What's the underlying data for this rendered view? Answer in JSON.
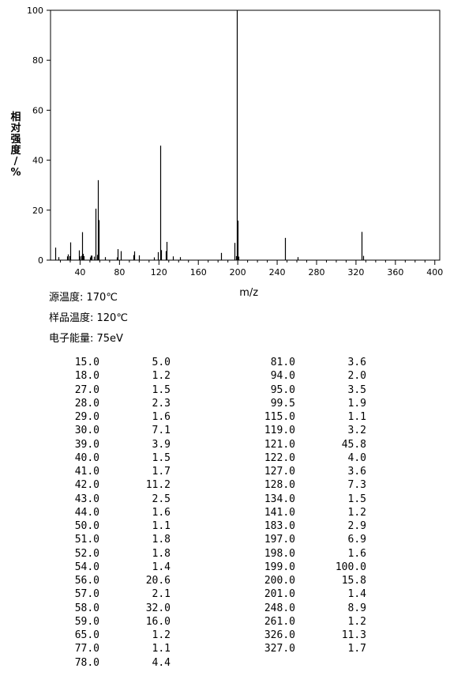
{
  "chart_data": {
    "type": "bar",
    "ylabel": "相对强度/%",
    "xlabel": "m/z",
    "xlim": [
      10,
      405
    ],
    "ylim": [
      0,
      100
    ],
    "xticks": [
      40,
      80,
      120,
      160,
      200,
      240,
      280,
      320,
      360,
      400
    ],
    "yticks": [
      0,
      20,
      40,
      60,
      80,
      100
    ],
    "bar_color": "#000000",
    "peaks": [
      {
        "mz": 15.0,
        "intensity": 5.0
      },
      {
        "mz": 18.0,
        "intensity": 1.2
      },
      {
        "mz": 27.0,
        "intensity": 1.5
      },
      {
        "mz": 28.0,
        "intensity": 2.3
      },
      {
        "mz": 29.0,
        "intensity": 1.6
      },
      {
        "mz": 30.0,
        "intensity": 7.1
      },
      {
        "mz": 39.0,
        "intensity": 3.9
      },
      {
        "mz": 40.0,
        "intensity": 1.5
      },
      {
        "mz": 41.0,
        "intensity": 1.7
      },
      {
        "mz": 42.0,
        "intensity": 11.2
      },
      {
        "mz": 43.0,
        "intensity": 2.5
      },
      {
        "mz": 44.0,
        "intensity": 1.6
      },
      {
        "mz": 50.0,
        "intensity": 1.1
      },
      {
        "mz": 51.0,
        "intensity": 1.8
      },
      {
        "mz": 52.0,
        "intensity": 1.8
      },
      {
        "mz": 54.0,
        "intensity": 1.4
      },
      {
        "mz": 56.0,
        "intensity": 20.6
      },
      {
        "mz": 57.0,
        "intensity": 2.1
      },
      {
        "mz": 58.0,
        "intensity": 32.0
      },
      {
        "mz": 59.0,
        "intensity": 16.0
      },
      {
        "mz": 65.0,
        "intensity": 1.2
      },
      {
        "mz": 77.0,
        "intensity": 1.1
      },
      {
        "mz": 78.0,
        "intensity": 4.4
      },
      {
        "mz": 81.0,
        "intensity": 3.6
      },
      {
        "mz": 94.0,
        "intensity": 2.0
      },
      {
        "mz": 95.0,
        "intensity": 3.5
      },
      {
        "mz": 99.5,
        "intensity": 1.9
      },
      {
        "mz": 115.0,
        "intensity": 1.1
      },
      {
        "mz": 119.0,
        "intensity": 3.2
      },
      {
        "mz": 121.0,
        "intensity": 45.8
      },
      {
        "mz": 122.0,
        "intensity": 4.0
      },
      {
        "mz": 127.0,
        "intensity": 3.6
      },
      {
        "mz": 128.0,
        "intensity": 7.3
      },
      {
        "mz": 134.0,
        "intensity": 1.5
      },
      {
        "mz": 141.0,
        "intensity": 1.2
      },
      {
        "mz": 183.0,
        "intensity": 2.9
      },
      {
        "mz": 197.0,
        "intensity": 6.9
      },
      {
        "mz": 198.0,
        "intensity": 1.6
      },
      {
        "mz": 199.0,
        "intensity": 100.0
      },
      {
        "mz": 200.0,
        "intensity": 15.8
      },
      {
        "mz": 201.0,
        "intensity": 1.4
      },
      {
        "mz": 248.0,
        "intensity": 8.9
      },
      {
        "mz": 261.0,
        "intensity": 1.2
      },
      {
        "mz": 326.0,
        "intensity": 11.3
      },
      {
        "mz": 327.0,
        "intensity": 1.7
      }
    ]
  },
  "conditions": {
    "source_temp": "源温度: 170℃",
    "sample_temp": "样品温度: 120℃",
    "electron_energy": "电子能量: 75eV"
  },
  "table": {
    "left": [
      {
        "mz": "15.0",
        "intensity": "5.0"
      },
      {
        "mz": "18.0",
        "intensity": "1.2"
      },
      {
        "mz": "27.0",
        "intensity": "1.5"
      },
      {
        "mz": "28.0",
        "intensity": "2.3"
      },
      {
        "mz": "29.0",
        "intensity": "1.6"
      },
      {
        "mz": "30.0",
        "intensity": "7.1"
      },
      {
        "mz": "39.0",
        "intensity": "3.9"
      },
      {
        "mz": "40.0",
        "intensity": "1.5"
      },
      {
        "mz": "41.0",
        "intensity": "1.7"
      },
      {
        "mz": "42.0",
        "intensity": "11.2"
      },
      {
        "mz": "43.0",
        "intensity": "2.5"
      },
      {
        "mz": "44.0",
        "intensity": "1.6"
      },
      {
        "mz": "50.0",
        "intensity": "1.1"
      },
      {
        "mz": "51.0",
        "intensity": "1.8"
      },
      {
        "mz": "52.0",
        "intensity": "1.8"
      },
      {
        "mz": "54.0",
        "intensity": "1.4"
      },
      {
        "mz": "56.0",
        "intensity": "20.6"
      },
      {
        "mz": "57.0",
        "intensity": "2.1"
      },
      {
        "mz": "58.0",
        "intensity": "32.0"
      },
      {
        "mz": "59.0",
        "intensity": "16.0"
      },
      {
        "mz": "65.0",
        "intensity": "1.2"
      },
      {
        "mz": "77.0",
        "intensity": "1.1"
      },
      {
        "mz": "78.0",
        "intensity": "4.4"
      }
    ],
    "right": [
      {
        "mz": "81.0",
        "intensity": "3.6"
      },
      {
        "mz": "94.0",
        "intensity": "2.0"
      },
      {
        "mz": "95.0",
        "intensity": "3.5"
      },
      {
        "mz": "99.5",
        "intensity": "1.9"
      },
      {
        "mz": "115.0",
        "intensity": "1.1"
      },
      {
        "mz": "119.0",
        "intensity": "3.2"
      },
      {
        "mz": "121.0",
        "intensity": "45.8"
      },
      {
        "mz": "122.0",
        "intensity": "4.0"
      },
      {
        "mz": "127.0",
        "intensity": "3.6"
      },
      {
        "mz": "128.0",
        "intensity": "7.3"
      },
      {
        "mz": "134.0",
        "intensity": "1.5"
      },
      {
        "mz": "141.0",
        "intensity": "1.2"
      },
      {
        "mz": "183.0",
        "intensity": "2.9"
      },
      {
        "mz": "197.0",
        "intensity": "6.9"
      },
      {
        "mz": "198.0",
        "intensity": "1.6"
      },
      {
        "mz": "199.0",
        "intensity": "100.0"
      },
      {
        "mz": "200.0",
        "intensity": "15.8"
      },
      {
        "mz": "201.0",
        "intensity": "1.4"
      },
      {
        "mz": "248.0",
        "intensity": "8.9"
      },
      {
        "mz": "261.0",
        "intensity": "1.2"
      },
      {
        "mz": "326.0",
        "intensity": "11.3"
      },
      {
        "mz": "327.0",
        "intensity": "1.7"
      }
    ]
  }
}
